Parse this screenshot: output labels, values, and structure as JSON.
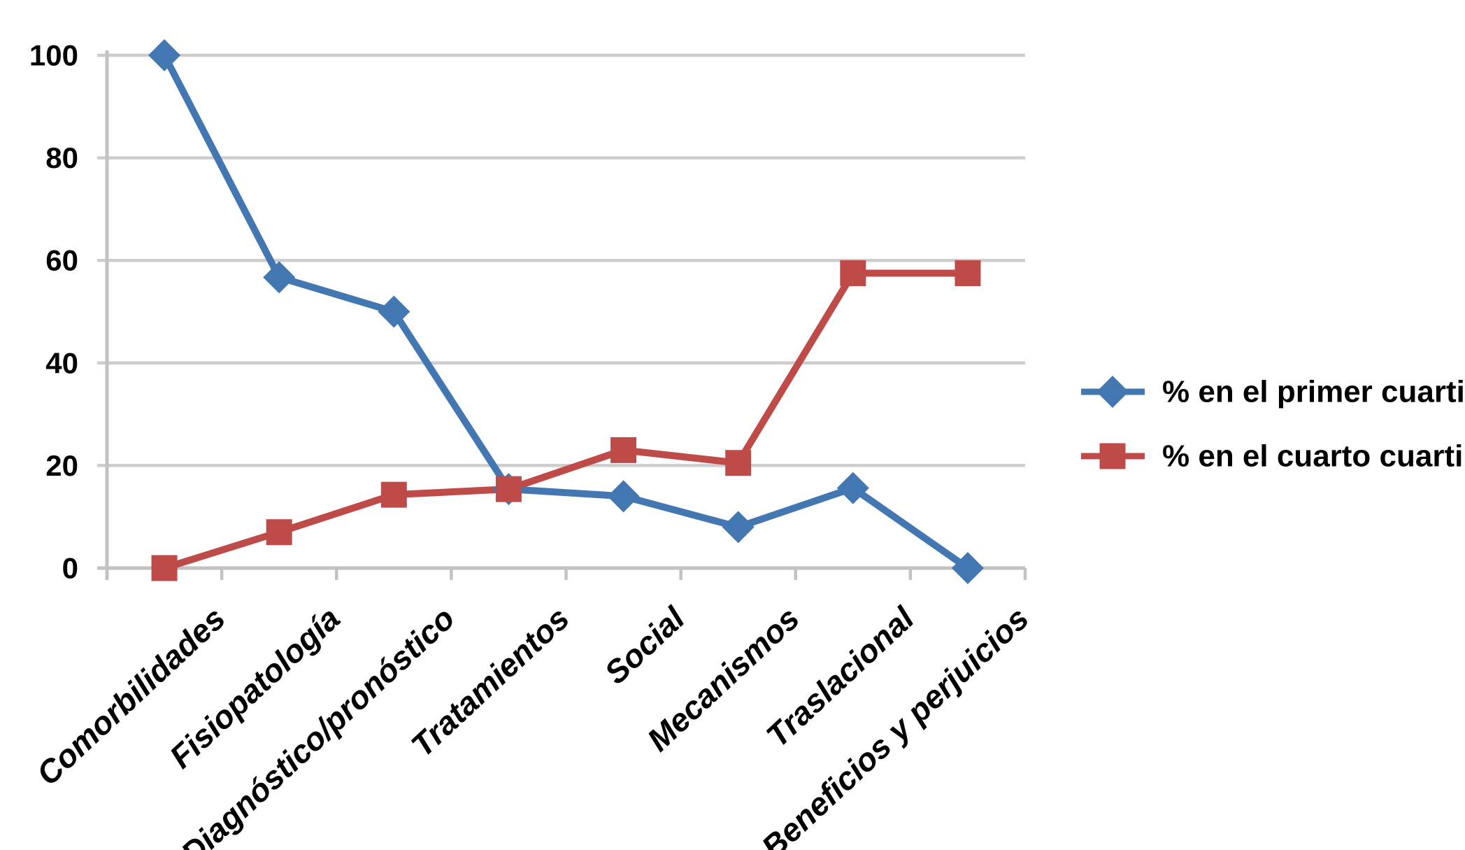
{
  "chart_data": {
    "type": "line",
    "title": "",
    "xlabel": "",
    "ylabel": "",
    "categories": [
      "Comorbilidades",
      "Fisiopatología",
      "Diagnóstico/pronóstico",
      "Tratamientos",
      "Social",
      "Mecanismos",
      "Traslacional",
      "Beneficios y perjuicios"
    ],
    "series": [
      {
        "name": "% en el primer cuartil",
        "marker": "diamond",
        "color": "#4377B2",
        "values": [
          100,
          56.7,
          50,
          15.4,
          14,
          8,
          15.6,
          0
        ]
      },
      {
        "name": "% en el cuarto cuartil",
        "marker": "square",
        "color": "#BE4B48",
        "values": [
          0,
          7,
          14.3,
          15.4,
          23,
          20.5,
          57.5,
          57.5
        ]
      }
    ],
    "yticks": [
      0,
      20,
      40,
      60,
      80,
      100
    ],
    "ylim": [
      0,
      100
    ],
    "grid": true,
    "legend_position": "right",
    "grid_color": "#CDCDCD",
    "axis_color": "#C2C2C2",
    "text_color": "#000000",
    "background": "#FFFFFF"
  }
}
